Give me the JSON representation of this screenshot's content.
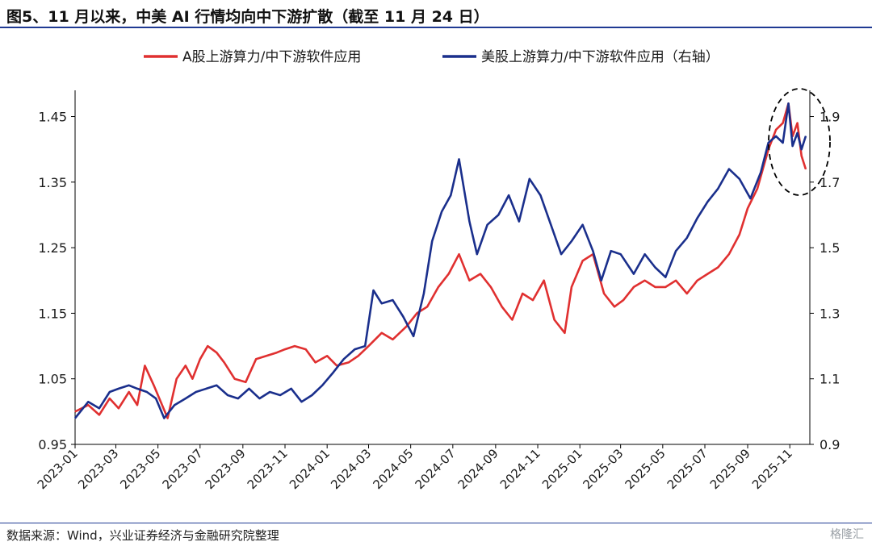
{
  "title": "图5、11 月以来，中美 AI 行情均向中下游扩散（截至 11 月 24 日）",
  "source": "数据来源：Wind，兴业证券经济与金融研究院整理",
  "brand": "格隆汇",
  "colors": {
    "series_a": "#e03030",
    "series_b": "#1a2f8c",
    "title_rule": "#1f3a93",
    "annotation": "#000000"
  },
  "chart_data": {
    "type": "line",
    "x_ticks": [
      "2023-01",
      "2023-03",
      "2023-05",
      "2023-07",
      "2023-09",
      "2023-11",
      "2024-01",
      "2024-03",
      "2024-05",
      "2024-07",
      "2024-09",
      "2024-11",
      "2025-01",
      "2025-03",
      "2025-05",
      "2025-07",
      "2025-09",
      "2025-11"
    ],
    "x_range": [
      "2023-01-01",
      "2025-11-30"
    ],
    "y_left": {
      "ticks": [
        "0.95",
        "1.05",
        "1.15",
        "1.25",
        "1.35",
        "1.45"
      ],
      "range": [
        0.95,
        1.49
      ]
    },
    "y_right": {
      "ticks": [
        "0.9",
        "1.1",
        "1.3",
        "1.5",
        "1.7",
        "1.9"
      ],
      "range": [
        0.9,
        1.98
      ]
    },
    "legend_position": "top",
    "grid": false,
    "annotation": "dashed ellipse around the recent period (Oct–Nov 2025)",
    "series": [
      {
        "name": "A股上游算力/中下游软件应用",
        "axis": "left",
        "points": [
          [
            "2023-01-01",
            1.0
          ],
          [
            "2023-01-20",
            1.01
          ],
          [
            "2023-02-05",
            0.995
          ],
          [
            "2023-02-20",
            1.02
          ],
          [
            "2023-03-05",
            1.005
          ],
          [
            "2023-03-20",
            1.03
          ],
          [
            "2023-04-01",
            1.01
          ],
          [
            "2023-04-12",
            1.07
          ],
          [
            "2023-04-25",
            1.04
          ],
          [
            "2023-05-05",
            1.015
          ],
          [
            "2023-05-15",
            0.99
          ],
          [
            "2023-05-28",
            1.05
          ],
          [
            "2023-06-10",
            1.07
          ],
          [
            "2023-06-20",
            1.05
          ],
          [
            "2023-07-01",
            1.08
          ],
          [
            "2023-07-12",
            1.1
          ],
          [
            "2023-07-25",
            1.09
          ],
          [
            "2023-08-05",
            1.075
          ],
          [
            "2023-08-20",
            1.05
          ],
          [
            "2023-09-05",
            1.045
          ],
          [
            "2023-09-20",
            1.08
          ],
          [
            "2023-10-05",
            1.085
          ],
          [
            "2023-10-20",
            1.09
          ],
          [
            "2023-11-01",
            1.095
          ],
          [
            "2023-11-15",
            1.1
          ],
          [
            "2023-12-01",
            1.095
          ],
          [
            "2023-12-15",
            1.075
          ],
          [
            "2024-01-01",
            1.085
          ],
          [
            "2024-01-15",
            1.07
          ],
          [
            "2024-02-01",
            1.075
          ],
          [
            "2024-02-15",
            1.085
          ],
          [
            "2024-03-01",
            1.1
          ],
          [
            "2024-03-20",
            1.12
          ],
          [
            "2024-04-05",
            1.11
          ],
          [
            "2024-04-25",
            1.13
          ],
          [
            "2024-05-10",
            1.15
          ],
          [
            "2024-05-25",
            1.16
          ],
          [
            "2024-06-10",
            1.19
          ],
          [
            "2024-06-25",
            1.21
          ],
          [
            "2024-07-10",
            1.24
          ],
          [
            "2024-07-25",
            1.2
          ],
          [
            "2024-08-10",
            1.21
          ],
          [
            "2024-08-25",
            1.19
          ],
          [
            "2024-09-10",
            1.16
          ],
          [
            "2024-09-25",
            1.14
          ],
          [
            "2024-10-10",
            1.18
          ],
          [
            "2024-10-25",
            1.17
          ],
          [
            "2024-11-10",
            1.2
          ],
          [
            "2024-11-25",
            1.14
          ],
          [
            "2024-12-10",
            1.12
          ],
          [
            "2024-12-20",
            1.19
          ],
          [
            "2025-01-05",
            1.23
          ],
          [
            "2025-01-20",
            1.24
          ],
          [
            "2025-02-05",
            1.18
          ],
          [
            "2025-02-20",
            1.16
          ],
          [
            "2025-03-05",
            1.17
          ],
          [
            "2025-03-20",
            1.19
          ],
          [
            "2025-04-05",
            1.2
          ],
          [
            "2025-04-20",
            1.19
          ],
          [
            "2025-05-05",
            1.19
          ],
          [
            "2025-05-20",
            1.2
          ],
          [
            "2025-06-05",
            1.18
          ],
          [
            "2025-06-20",
            1.2
          ],
          [
            "2025-07-05",
            1.21
          ],
          [
            "2025-07-20",
            1.22
          ],
          [
            "2025-08-05",
            1.24
          ],
          [
            "2025-08-20",
            1.27
          ],
          [
            "2025-09-01",
            1.31
          ],
          [
            "2025-09-15",
            1.34
          ],
          [
            "2025-10-01",
            1.4
          ],
          [
            "2025-10-12",
            1.43
          ],
          [
            "2025-10-22",
            1.44
          ],
          [
            "2025-10-30",
            1.47
          ],
          [
            "2025-11-05",
            1.42
          ],
          [
            "2025-11-12",
            1.44
          ],
          [
            "2025-11-18",
            1.39
          ],
          [
            "2025-11-24",
            1.37
          ]
        ]
      },
      {
        "name": "美股上游算力/中下游软件应用（右轴）",
        "axis": "right",
        "points": [
          [
            "2023-01-01",
            0.98
          ],
          [
            "2023-01-20",
            1.03
          ],
          [
            "2023-02-05",
            1.01
          ],
          [
            "2023-02-20",
            1.06
          ],
          [
            "2023-03-05",
            1.07
          ],
          [
            "2023-03-20",
            1.08
          ],
          [
            "2023-04-01",
            1.07
          ],
          [
            "2023-04-15",
            1.06
          ],
          [
            "2023-04-28",
            1.04
          ],
          [
            "2023-05-10",
            0.98
          ],
          [
            "2023-05-25",
            1.02
          ],
          [
            "2023-06-10",
            1.04
          ],
          [
            "2023-06-25",
            1.06
          ],
          [
            "2023-07-10",
            1.07
          ],
          [
            "2023-07-25",
            1.08
          ],
          [
            "2023-08-10",
            1.05
          ],
          [
            "2023-08-25",
            1.04
          ],
          [
            "2023-09-10",
            1.07
          ],
          [
            "2023-09-25",
            1.04
          ],
          [
            "2023-10-10",
            1.06
          ],
          [
            "2023-10-25",
            1.05
          ],
          [
            "2023-11-10",
            1.07
          ],
          [
            "2023-11-25",
            1.03
          ],
          [
            "2023-12-10",
            1.05
          ],
          [
            "2023-12-25",
            1.08
          ],
          [
            "2024-01-10",
            1.12
          ],
          [
            "2024-01-25",
            1.16
          ],
          [
            "2024-02-10",
            1.19
          ],
          [
            "2024-02-25",
            1.2
          ],
          [
            "2024-03-08",
            1.37
          ],
          [
            "2024-03-20",
            1.33
          ],
          [
            "2024-04-05",
            1.34
          ],
          [
            "2024-04-20",
            1.29
          ],
          [
            "2024-05-05",
            1.23
          ],
          [
            "2024-05-20",
            1.36
          ],
          [
            "2024-06-01",
            1.52
          ],
          [
            "2024-06-15",
            1.61
          ],
          [
            "2024-06-28",
            1.66
          ],
          [
            "2024-07-10",
            1.77
          ],
          [
            "2024-07-25",
            1.58
          ],
          [
            "2024-08-05",
            1.48
          ],
          [
            "2024-08-20",
            1.57
          ],
          [
            "2024-09-05",
            1.6
          ],
          [
            "2024-09-20",
            1.66
          ],
          [
            "2024-10-05",
            1.58
          ],
          [
            "2024-10-20",
            1.71
          ],
          [
            "2024-11-05",
            1.66
          ],
          [
            "2024-11-20",
            1.57
          ],
          [
            "2024-12-05",
            1.48
          ],
          [
            "2024-12-20",
            1.52
          ],
          [
            "2025-01-05",
            1.57
          ],
          [
            "2025-01-20",
            1.49
          ],
          [
            "2025-02-01",
            1.4
          ],
          [
            "2025-02-15",
            1.49
          ],
          [
            "2025-03-01",
            1.48
          ],
          [
            "2025-03-20",
            1.42
          ],
          [
            "2025-04-05",
            1.48
          ],
          [
            "2025-04-20",
            1.44
          ],
          [
            "2025-05-05",
            1.41
          ],
          [
            "2025-05-20",
            1.49
          ],
          [
            "2025-06-05",
            1.53
          ],
          [
            "2025-06-20",
            1.59
          ],
          [
            "2025-07-05",
            1.64
          ],
          [
            "2025-07-20",
            1.68
          ],
          [
            "2025-08-05",
            1.74
          ],
          [
            "2025-08-20",
            1.71
          ],
          [
            "2025-09-05",
            1.65
          ],
          [
            "2025-09-20",
            1.73
          ],
          [
            "2025-10-01",
            1.82
          ],
          [
            "2025-10-12",
            1.84
          ],
          [
            "2025-10-22",
            1.82
          ],
          [
            "2025-10-30",
            1.94
          ],
          [
            "2025-11-05",
            1.81
          ],
          [
            "2025-11-12",
            1.85
          ],
          [
            "2025-11-18",
            1.8
          ],
          [
            "2025-11-24",
            1.84
          ]
        ]
      }
    ]
  }
}
